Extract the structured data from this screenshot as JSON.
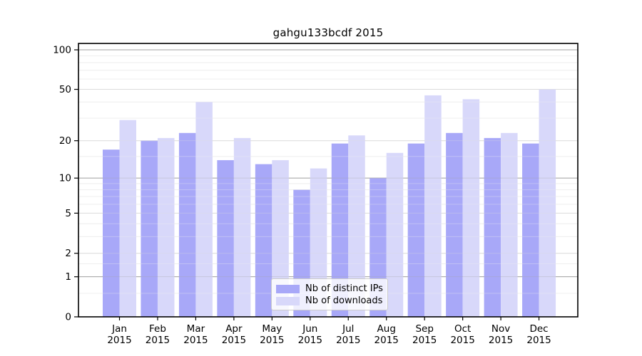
{
  "chart_data": {
    "type": "bar",
    "title": "gahgu133bcdf 2015",
    "months": [
      "Jan",
      "Feb",
      "Mar",
      "Apr",
      "May",
      "Jun",
      "Jul",
      "Aug",
      "Sep",
      "Oct",
      "Nov",
      "Dec"
    ],
    "year": "2015",
    "categories": [
      "Jan 2015",
      "Feb 2015",
      "Mar 2015",
      "Apr 2015",
      "May 2015",
      "Jun 2015",
      "Jul 2015",
      "Aug 2015",
      "Sep 2015",
      "Oct 2015",
      "Nov 2015",
      "Dec 2015"
    ],
    "series": [
      {
        "name": "Nb of distinct IPs",
        "color": "#a8a8f8",
        "values": [
          17,
          20,
          23,
          14,
          13,
          8,
          19,
          10,
          19,
          23,
          21,
          19
        ]
      },
      {
        "name": "Nb of downloads",
        "color": "#d8d8fa",
        "values": [
          29,
          21,
          40,
          21,
          14,
          12,
          22,
          16,
          45,
          42,
          23,
          50
        ]
      }
    ],
    "yticks": [
      0,
      1,
      2,
      5,
      10,
      20,
      50,
      100
    ],
    "minor_yticks": [
      0.5,
      1.5,
      3,
      4,
      6,
      7,
      8,
      9,
      15,
      30,
      40,
      60,
      70,
      80,
      90
    ],
    "y_scale": "log1p",
    "ylim": [
      0,
      112
    ],
    "xlabel": "",
    "ylabel": "",
    "grid": "on",
    "legend_position": "bottom-center-inside",
    "colors": {
      "major_gridline": "#a3a3a3",
      "mid_gridline": "#dcdcdc",
      "minor_gridline": "#efefef",
      "axis": "#000000",
      "text": "#000000",
      "background": "#ffffff"
    }
  }
}
